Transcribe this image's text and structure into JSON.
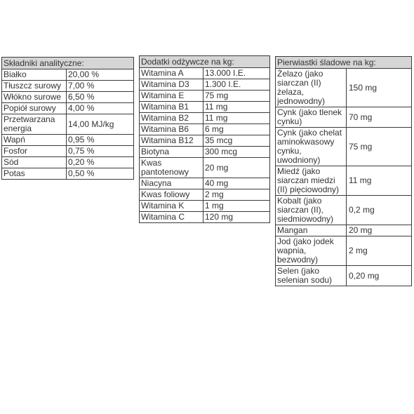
{
  "tables": [
    {
      "header": "Składniki analityczne:",
      "rows": [
        [
          "Białko",
          "20,00 %"
        ],
        [
          "Tłuszcz surowy",
          "7,00 %"
        ],
        [
          "Włókno surowe",
          "6,50 %"
        ],
        [
          "Popiół surowy",
          "4,00 %"
        ],
        [
          "Przetwarzana energia",
          "14,00 MJ/kg"
        ],
        [
          "Wapń",
          "0,95 %"
        ],
        [
          "Fosfor",
          "0,75 %"
        ],
        [
          "Sód",
          "0,20 %"
        ],
        [
          "Potas",
          "0,50 %"
        ]
      ]
    },
    {
      "header": "Dodatki odżywcze na kg:",
      "rows": [
        [
          "Witamina A",
          "13.000 I.E."
        ],
        [
          "Witamina D3",
          "1.300 I.E."
        ],
        [
          "Witamina E",
          "75 mg"
        ],
        [
          "Witamina B1",
          "11 mg"
        ],
        [
          "Witamina B2",
          "11 mg"
        ],
        [
          "Witamina B6",
          "6 mg"
        ],
        [
          "Witamina B12",
          "35 mcg"
        ],
        [
          "Biotyna",
          "300 mcg"
        ],
        [
          "Kwas pantotenowy",
          "20 mg"
        ],
        [
          "Niacyna",
          "40 mg"
        ],
        [
          "Kwas foliowy",
          "2 mg"
        ],
        [
          "Witamina K",
          "1 mg"
        ],
        [
          "Witamina C",
          "120 mg"
        ]
      ]
    },
    {
      "header": "Pierwiastki śladowe na kg:",
      "rows": [
        [
          "Żelazo (jako siarczan (II) żelaza, jednowodny)",
          "150 mg"
        ],
        [
          "Cynk (jako tlenek cynku)",
          "70 mg"
        ],
        [
          "Cynk (jako chelat aminokwasowy cynku, uwodniony)",
          "75 mg"
        ],
        [
          "Miedź (jako siarczan miedzi (II) pięciowodny)",
          "11 mg"
        ],
        [
          "Kobalt (jako siarczan (II), siedmiowodny)",
          "0,2 mg"
        ],
        [
          "Mangan",
          "20 mg"
        ],
        [
          "Jod (jako jodek wapnia, bezwodny)",
          "2 mg"
        ],
        [
          "Selen (jako selenian sodu)",
          "0,20 mg"
        ]
      ]
    }
  ]
}
